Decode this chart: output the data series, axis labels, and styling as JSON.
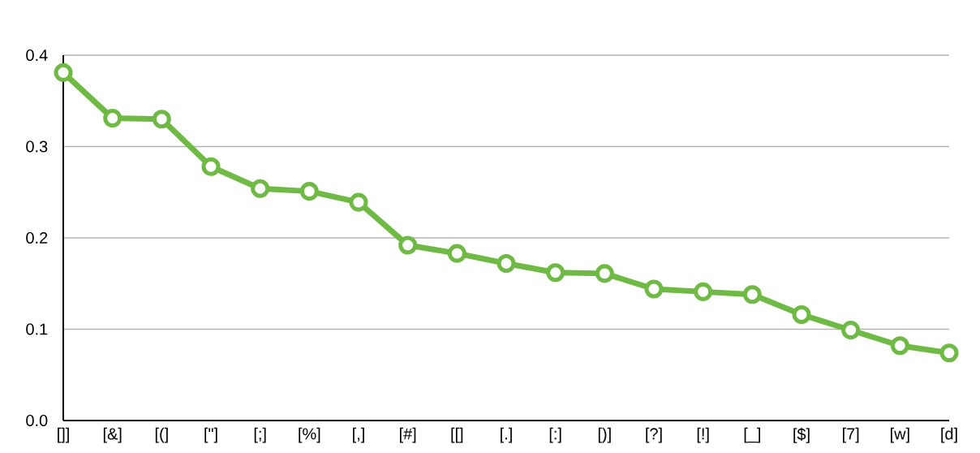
{
  "chart_data": {
    "type": "line",
    "categories": [
      "[]]",
      "[&]",
      "[(]",
      "[\"]",
      "[;]",
      "[%]",
      "[,]",
      "[#]",
      "[[]",
      "[.]",
      "[:]",
      "[)]",
      "[?]",
      "[!]",
      "[_]",
      "[$]",
      "[7]",
      "[w]",
      "[d]"
    ],
    "values": [
      0.381,
      0.331,
      0.33,
      0.278,
      0.254,
      0.251,
      0.239,
      0.192,
      0.183,
      0.172,
      0.162,
      0.161,
      0.144,
      0.141,
      0.138,
      0.116,
      0.099,
      0.082,
      0.074
    ],
    "color": "#6fba44",
    "ylim": [
      0,
      0.4
    ],
    "yticks": [
      {
        "value": 0,
        "label": "0.0"
      },
      0.1,
      0.2,
      0.3,
      0.4
    ],
    "grid": "y",
    "marker": "circle",
    "line_style": "solid"
  }
}
